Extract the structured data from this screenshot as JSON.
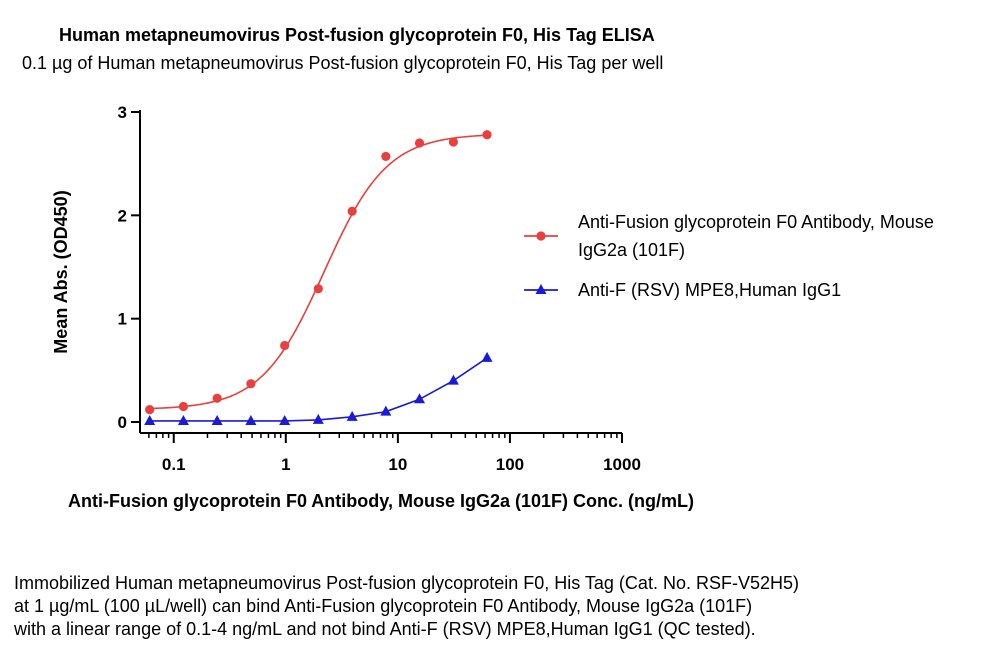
{
  "chart_data": {
    "type": "line",
    "title": "Human metapneumovirus Post-fusion glycoprotein F0, His Tag ELISA",
    "subtitle": "0.1 µg of Human metapneumovirus Post-fusion glycoprotein F0, His Tag per well",
    "xlabel": "Anti-Fusion glycoprotein F0 Antibody, Mouse IgG2a (101F) Conc. (ng/mL)",
    "ylabel": "Mean Abs. (OD450)",
    "xscale": "log",
    "xlim": [
      0.05,
      1000
    ],
    "ylim": [
      0,
      3
    ],
    "xticks": [
      0.1,
      1,
      10,
      100,
      1000
    ],
    "xtick_labels": [
      "0.1",
      "1",
      "10",
      "100",
      "1000"
    ],
    "yticks": [
      0,
      1,
      2,
      3
    ],
    "ytick_labels": [
      "0",
      "1",
      "2",
      "3"
    ],
    "grid": false,
    "legend_position": "right",
    "series": [
      {
        "name": "Anti-Fusion glycoprotein F0 Antibody, Mouse IgG2a (101F)",
        "name_lines": [
          "Anti-Fusion glycoprotein F0 Antibody, Mouse",
          "IgG2a (101F)"
        ],
        "color": "#e8403f",
        "marker": "circle",
        "x": [
          0.061,
          0.122,
          0.244,
          0.488,
          0.977,
          1.95,
          3.91,
          7.81,
          15.6,
          31.3,
          62.5
        ],
        "y": [
          0.12,
          0.15,
          0.23,
          0.37,
          0.74,
          1.29,
          2.04,
          2.57,
          2.7,
          2.71,
          2.78
        ],
        "fit": {
          "bottom": 0.12,
          "top": 2.79,
          "ec50": 2.2,
          "hill": 1.55
        }
      },
      {
        "name": "Anti-F (RSV) MPE8,Human IgG1",
        "name_lines": [
          "Anti-F (RSV) MPE8,Human IgG1"
        ],
        "color": "#1a1ad8",
        "marker": "triangle",
        "x": [
          0.061,
          0.122,
          0.244,
          0.488,
          0.977,
          1.95,
          3.91,
          7.81,
          15.6,
          31.3,
          62.5
        ],
        "y": [
          0.01,
          0.01,
          0.01,
          0.01,
          0.01,
          0.02,
          0.05,
          0.1,
          0.22,
          0.4,
          0.62
        ]
      }
    ]
  },
  "caption": [
    "Immobilized Human metapneumovirus Post-fusion glycoprotein F0, His Tag (Cat. No. RSF-V52H5)",
    "at 1 µg/mL (100 µL/well) can bind Anti-Fusion glycoprotein F0 Antibody, Mouse IgG2a (101F)",
    "with a linear range of 0.1-4 ng/mL and not bind Anti-F (RSV) MPE8,Human IgG1 (QC tested)."
  ]
}
